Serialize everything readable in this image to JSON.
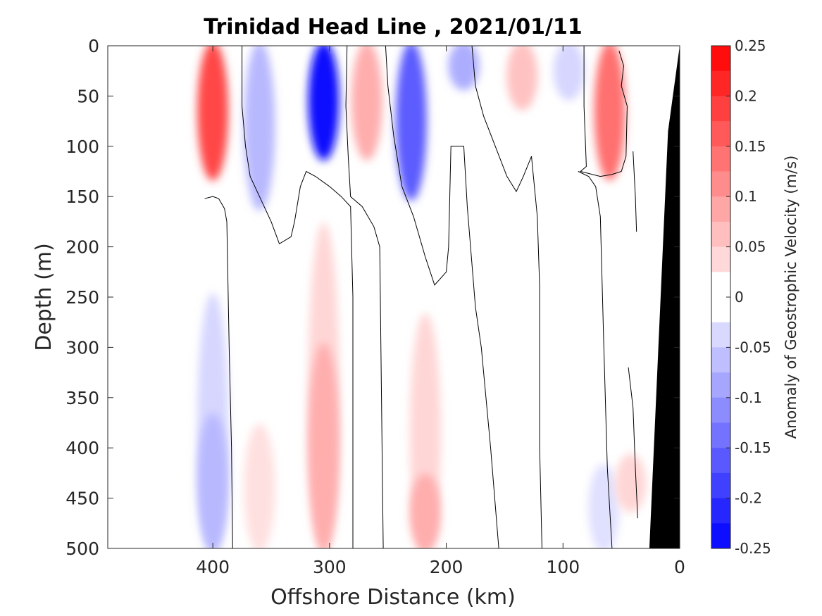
{
  "chart_data": {
    "type": "heatmap",
    "title": "Trinidad Head Line , 2021/01/11",
    "xlabel": "Offshore Distance (km)",
    "ylabel": "Depth (m)",
    "xlim": [
      490,
      0
    ],
    "ylim": [
      0,
      500
    ],
    "x_ticks": [
      "400",
      "300",
      "200",
      "100",
      "0"
    ],
    "y_ticks": [
      "0",
      "50",
      "100",
      "150",
      "200",
      "250",
      "300",
      "350",
      "400",
      "450",
      "500"
    ],
    "colorbar": {
      "label": "Anomaly of Geostrophic Velocity (m/s)",
      "ticks": [
        "0.25",
        "0.2",
        "0.15",
        "0.1",
        "0.05",
        "0",
        "-0.05",
        "-0.1",
        "-0.15",
        "-0.2",
        "-0.25"
      ],
      "range": [
        -0.25,
        0.25
      ],
      "levels": 20
    },
    "colors": {
      "positive_max": "#ff0000",
      "negative_max": "#0000ff",
      "zero": "#ffffff",
      "bathymetry": "#000000",
      "contour": "#000000"
    },
    "data_extent_km": [
      410,
      0
    ],
    "features": [
      {
        "x": 400,
        "z0": 0,
        "z1": 130,
        "v": 0.18
      },
      {
        "x": 360,
        "z0": 0,
        "z1": 160,
        "v": -0.07
      },
      {
        "x": 305,
        "z0": 0,
        "z1": 110,
        "v": -0.24
      },
      {
        "x": 268,
        "z0": 0,
        "z1": 110,
        "v": 0.08
      },
      {
        "x": 230,
        "z0": 0,
        "z1": 150,
        "v": -0.16
      },
      {
        "x": 185,
        "z0": 0,
        "z1": 40,
        "v": -0.08
      },
      {
        "x": 135,
        "z0": 0,
        "z1": 60,
        "v": 0.06
      },
      {
        "x": 95,
        "z0": 0,
        "z1": 50,
        "v": -0.04
      },
      {
        "x": 60,
        "z0": 0,
        "z1": 130,
        "v": 0.14
      },
      {
        "x": 305,
        "z0": 180,
        "z1": 500,
        "v": 0.04
      },
      {
        "x": 305,
        "z0": 300,
        "z1": 500,
        "v": 0.08
      },
      {
        "x": 218,
        "z0": 270,
        "z1": 500,
        "v": 0.04
      },
      {
        "x": 218,
        "z0": 430,
        "z1": 500,
        "v": 0.08
      },
      {
        "x": 360,
        "z0": 380,
        "z1": 500,
        "v": 0.03
      },
      {
        "x": 400,
        "z0": 250,
        "z1": 500,
        "v": -0.04
      },
      {
        "x": 400,
        "z0": 370,
        "z1": 500,
        "v": -0.07
      },
      {
        "x": 65,
        "z0": 420,
        "z1": 500,
        "v": -0.03
      },
      {
        "x": 42,
        "z0": 410,
        "z1": 460,
        "v": 0.04
      }
    ],
    "zero_contours": [
      [
        [
          407,
          152
        ],
        [
          400,
          150
        ],
        [
          395,
          152
        ],
        [
          390,
          162
        ],
        [
          388,
          175
        ],
        [
          386,
          300
        ],
        [
          384,
          400
        ],
        [
          383,
          500
        ]
      ],
      [
        [
          375,
          0
        ],
        [
          375,
          60
        ],
        [
          372,
          100
        ],
        [
          368,
          130
        ],
        [
          360,
          150
        ],
        [
          350,
          175
        ],
        [
          343,
          197
        ],
        [
          333,
          190
        ],
        [
          330,
          175
        ],
        [
          325,
          140
        ],
        [
          320,
          125
        ],
        [
          312,
          130
        ],
        [
          300,
          140
        ],
        [
          290,
          150
        ],
        [
          282,
          160
        ],
        [
          280,
          250
        ],
        [
          280,
          400
        ],
        [
          280,
          500
        ]
      ],
      [
        [
          285,
          0
        ],
        [
          286,
          60
        ],
        [
          284,
          110
        ],
        [
          282,
          150
        ],
        [
          272,
          160
        ],
        [
          262,
          180
        ],
        [
          257,
          200
        ],
        [
          256,
          300
        ],
        [
          254,
          500
        ]
      ],
      [
        [
          252,
          0
        ],
        [
          250,
          40
        ],
        [
          245,
          90
        ],
        [
          238,
          140
        ],
        [
          228,
          170
        ],
        [
          218,
          210
        ],
        [
          210,
          238
        ],
        [
          200,
          225
        ],
        [
          198,
          200
        ],
        [
          197,
          150
        ],
        [
          196,
          100
        ],
        [
          185,
          100
        ],
        [
          182,
          160
        ],
        [
          175,
          260
        ],
        [
          170,
          300
        ],
        [
          162,
          400
        ],
        [
          155,
          500
        ]
      ],
      [
        [
          178,
          0
        ],
        [
          175,
          40
        ],
        [
          168,
          70
        ],
        [
          158,
          100
        ],
        [
          148,
          130
        ],
        [
          140,
          145
        ],
        [
          134,
          130
        ],
        [
          127,
          110
        ],
        [
          122,
          170
        ],
        [
          120,
          240
        ],
        [
          120,
          400
        ],
        [
          118,
          500
        ]
      ],
      [
        [
          82,
          0
        ],
        [
          82,
          60
        ],
        [
          80,
          120
        ],
        [
          85,
          125
        ],
        [
          68,
          130
        ],
        [
          58,
          128
        ],
        [
          50,
          125
        ],
        [
          46,
          110
        ],
        [
          45,
          60
        ],
        [
          50,
          40
        ],
        [
          48,
          20
        ],
        [
          52,
          5
        ]
      ],
      [
        [
          87,
          125
        ],
        [
          78,
          130
        ],
        [
          72,
          140
        ],
        [
          68,
          170
        ],
        [
          65,
          300
        ],
        [
          62,
          420
        ],
        [
          58,
          500
        ]
      ],
      [
        [
          40,
          105
        ],
        [
          38,
          150
        ],
        [
          37,
          185
        ]
      ],
      [
        [
          44,
          320
        ],
        [
          40,
          360
        ],
        [
          38,
          420
        ],
        [
          36,
          470
        ]
      ]
    ],
    "bathymetry": [
      [
        0,
        0
      ],
      [
        10,
        85
      ],
      [
        26,
        500
      ],
      [
        0,
        500
      ]
    ]
  }
}
